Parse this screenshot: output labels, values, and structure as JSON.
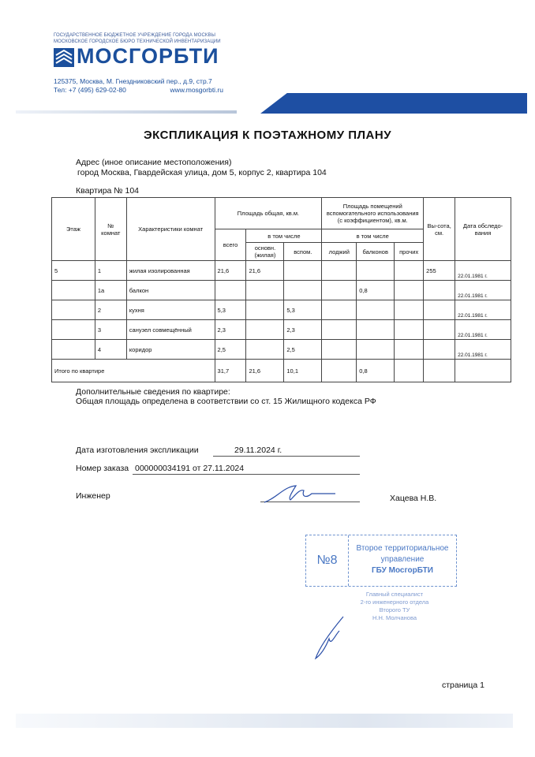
{
  "header": {
    "org_line1": "ГОСУДАРСТВЕННОЕ БЮДЖЕТНОЕ УЧРЕЖДЕНИЕ ГОРОДА МОСКВЫ",
    "org_line2": "МОСКОВСКОЕ ГОРОДСКОЕ БЮРО ТЕХНИЧЕСКОЙ ИНВЕНТАРИЗАЦИИ",
    "logo": "МОСГОРБТИ",
    "address": "125375, Москва, М. Гнездниковский пер., д.9, стр.7",
    "phone": "Тел: +7 (495) 629-02-80",
    "website": "www.mosgorbti.ru",
    "brand_color": "#1e4fa3"
  },
  "title": "ЭКСПЛИКАЦИЯ К ПОЭТАЖНОМУ ПЛАНУ",
  "address_label": "Адрес (иное описание местоположения)",
  "address_value": "город Москва, Гвардейская улица, дом 5, корпус 2, квартира 104",
  "apartment_label": "Квартира № 104",
  "table": {
    "h_floor": "Этаж",
    "h_room_no": "№ комнат",
    "h_char": "Характеристики комнат",
    "h_total_area": "Площадь общая, кв.м.",
    "h_aux_area": "Площадь помещений вспомогательного использования (с коэффициентом), кв.м.",
    "h_height": "Вы-сота, см.",
    "h_date": "Дата обследо-вания",
    "h_all": "всего",
    "h_incl": "в том числе",
    "h_incl2": "в том числе",
    "h_main": "основн. (жилая)",
    "h_aux": "вспом.",
    "h_loggia": "лоджий",
    "h_balcony": "балконов",
    "h_other": "прочих",
    "rows": [
      {
        "floor": "5",
        "no": "1",
        "char": "жилая изолированная",
        "all": "21,6",
        "main": "21,6",
        "aux": "",
        "loggia": "",
        "balcony": "",
        "other": "",
        "height": "255",
        "date": "22.01.1981 г."
      },
      {
        "floor": "",
        "no": "1а",
        "char": "балкон",
        "all": "",
        "main": "",
        "aux": "",
        "loggia": "",
        "balcony": "0,8",
        "other": "",
        "height": "",
        "date": "22.01.1981 г."
      },
      {
        "floor": "",
        "no": "2",
        "char": "кухня",
        "all": "5,3",
        "main": "",
        "aux": "5,3",
        "loggia": "",
        "balcony": "",
        "other": "",
        "height": "",
        "date": "22.01.1981 г."
      },
      {
        "floor": "",
        "no": "3",
        "char": "санузел совмещённый",
        "all": "2,3",
        "main": "",
        "aux": "2,3",
        "loggia": "",
        "balcony": "",
        "other": "",
        "height": "",
        "date": "22.01.1981 г."
      },
      {
        "floor": "",
        "no": "4",
        "char": "коридор",
        "all": "2,5",
        "main": "",
        "aux": "2,5",
        "loggia": "",
        "balcony": "",
        "other": "",
        "height": "",
        "date": "22.01.1981 г."
      }
    ],
    "total": {
      "label": "Итого по квартире",
      "all": "31,7",
      "main": "21,6",
      "aux": "10,1",
      "balcony": "0,8"
    }
  },
  "extra_label": "Дополнительные сведения по квартире:",
  "extra_value": "Общая площадь определена в соответствии со ст. 15 Жилищного кодекса РФ",
  "date_label": "Дата изготовления экспликации",
  "date_value": "29.11.2024 г.",
  "order_label": "Номер заказа",
  "order_value": "000000034191 от 27.11.2024",
  "engineer_label": "Инженер",
  "engineer_name": "Хацева Н.В.",
  "stamp": {
    "number": "№8",
    "line1": "Второе территориальное",
    "line2": "управление",
    "line3": "ГБУ МосгорБТИ",
    "color": "#4a78c4"
  },
  "signoff": {
    "line1": "Главный специалист",
    "line2": "2-го инженерного отдела",
    "line3": "Второго ТУ",
    "line4": "Н.Н. Молчанова"
  },
  "page_label": "страница 1"
}
